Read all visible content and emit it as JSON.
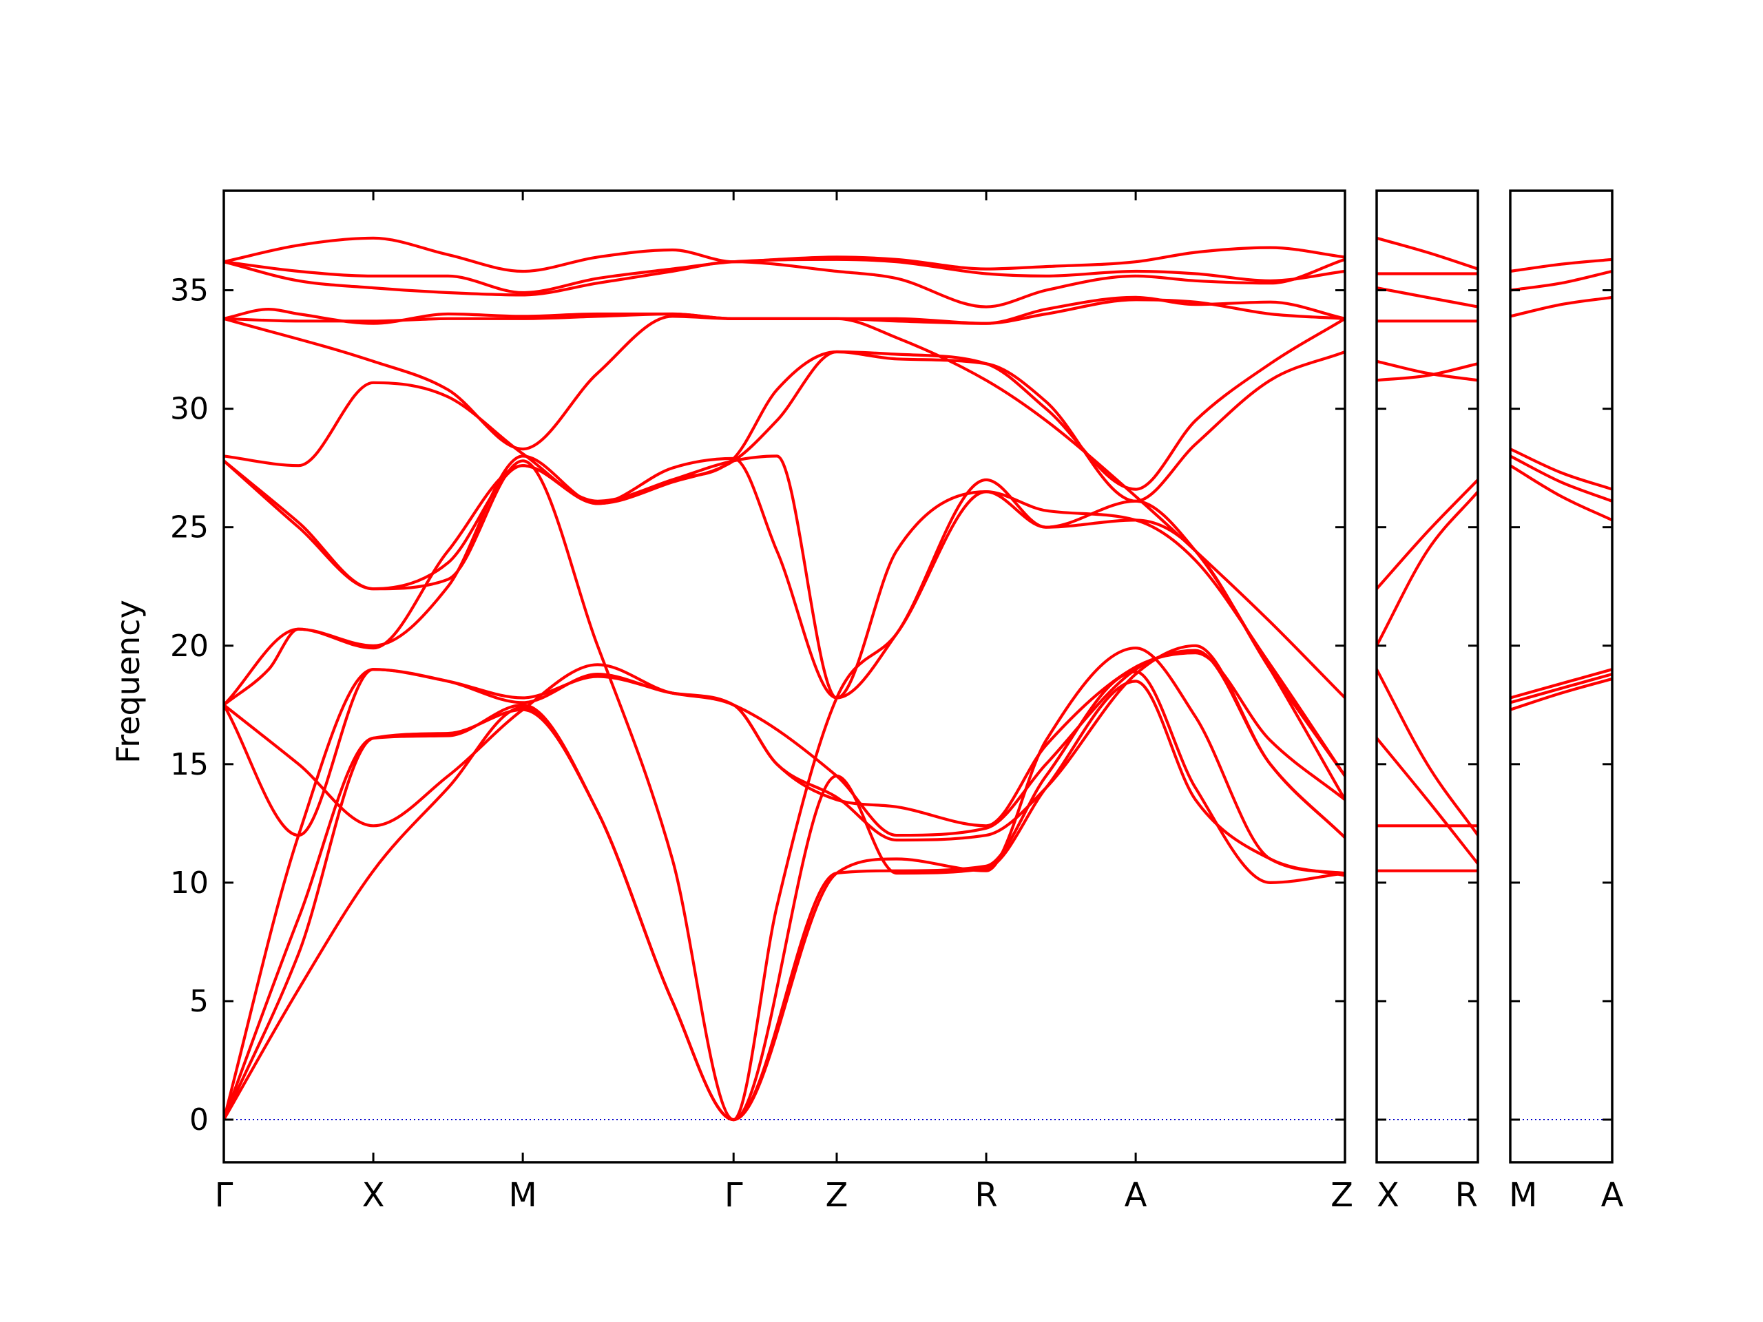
{
  "chart_data": {
    "type": "line",
    "ylabel": "Frequency",
    "ylim": [
      -1.8,
      39.2
    ],
    "yticks": [
      0,
      5,
      10,
      15,
      20,
      25,
      30,
      35
    ],
    "line_color": "#ff0000",
    "zero_line_color": "#0000cc",
    "grid": false,
    "panels": [
      {
        "kpoints": [
          {
            "label": "Γ",
            "x": 0.0
          },
          {
            "label": "X",
            "x": 1.0
          },
          {
            "label": "M",
            "x": 2.0
          },
          {
            "label": "Γ",
            "x": 3.41
          },
          {
            "label": "Z",
            "x": 4.1
          },
          {
            "label": "R",
            "x": 5.1
          },
          {
            "label": "A",
            "x": 6.1
          },
          {
            "label": "Z",
            "x": 7.5
          }
        ],
        "series": [
          {
            "x": [
              0,
              0.5,
              1.0,
              1.5,
              2.0,
              2.5,
              3.0,
              3.41,
              3.7,
              4.1,
              4.5,
              5.1,
              5.5,
              6.1,
              6.5,
              7.0,
              7.5
            ],
            "values": [
              36.2,
              36.9,
              37.2,
              36.5,
              35.8,
              36.4,
              36.7,
              36.2,
              36.3,
              36.4,
              36.3,
              35.9,
              36.0,
              36.2,
              36.6,
              36.8,
              36.4
            ]
          },
          {
            "x": [
              0,
              0.5,
              1.0,
              1.5,
              2.0,
              2.5,
              3.0,
              3.41,
              4.1,
              4.5,
              5.1,
              5.5,
              6.1,
              6.5,
              7.0,
              7.5
            ],
            "values": [
              36.2,
              35.8,
              35.6,
              35.6,
              34.9,
              35.5,
              35.9,
              36.2,
              36.3,
              36.2,
              35.7,
              35.6,
              35.8,
              35.7,
              35.4,
              35.8
            ]
          },
          {
            "x": [
              0,
              0.5,
              1.0,
              1.5,
              2.0,
              2.5,
              3.0,
              3.41,
              4.1,
              4.5,
              5.1,
              5.5,
              6.1,
              6.5,
              7.0,
              7.5
            ],
            "values": [
              36.2,
              35.4,
              35.1,
              34.9,
              34.8,
              35.3,
              35.8,
              36.2,
              35.8,
              35.5,
              34.3,
              35.0,
              35.6,
              35.4,
              35.3,
              36.3
            ]
          },
          {
            "x": [
              0,
              0.3,
              0.5,
              1.0,
              1.5,
              2.0,
              2.5,
              3.0,
              3.41,
              4.1,
              4.5,
              5.1,
              5.5,
              6.1,
              6.5,
              7.0,
              7.5
            ],
            "values": [
              33.8,
              34.2,
              34.0,
              33.6,
              34.0,
              33.9,
              34.0,
              34.0,
              33.8,
              33.8,
              33.8,
              33.6,
              34.2,
              34.7,
              34.4,
              34.5,
              33.8
            ]
          },
          {
            "x": [
              0,
              0.5,
              1.0,
              1.5,
              2.0,
              2.5,
              3.0,
              3.41,
              4.1,
              4.5,
              5.1,
              5.5,
              6.1,
              6.5,
              7.0,
              7.5
            ],
            "values": [
              33.8,
              33.7,
              33.7,
              33.8,
              33.8,
              33.9,
              34.0,
              33.8,
              33.8,
              33.7,
              33.6,
              34.0,
              34.6,
              34.5,
              34.0,
              33.8
            ]
          },
          {
            "x": [
              0,
              0.5,
              1.0,
              1.5,
              2.0,
              2.5,
              3.0,
              3.41,
              3.7,
              4.1,
              4.5,
              5.1,
              5.5,
              6.1,
              6.5,
              7.0,
              7.5
            ],
            "values": [
              28.0,
              27.6,
              31.1,
              30.5,
              28.1,
              26.1,
              27.0,
              27.9,
              30.8,
              32.4,
              32.3,
              31.9,
              30.0,
              26.6,
              29.5,
              31.9,
              33.8
            ]
          },
          {
            "x": [
              0,
              0.5,
              1.0,
              1.5,
              2.0,
              2.5,
              3.0,
              3.41,
              3.7,
              4.1,
              4.5,
              5.1,
              5.5,
              6.1,
              6.5,
              7.0,
              7.5
            ],
            "values": [
              27.8,
              25.2,
              22.4,
              23.5,
              27.6,
              26.0,
              26.9,
              27.8,
              29.5,
              32.4,
              32.1,
              31.9,
              30.3,
              26.1,
              28.5,
              31.2,
              32.4
            ]
          },
          {
            "x": [
              0,
              1.0,
              1.5,
              2.0,
              2.5,
              3.0,
              3.41,
              4.1,
              4.5,
              5.1,
              5.5,
              6.1,
              6.5,
              7.0,
              7.5
            ],
            "values": [
              33.8,
              32.0,
              30.8,
              28.3,
              31.5,
              33.9,
              33.8,
              33.8,
              33.0,
              31.2,
              29.5,
              26.3,
              24.0,
              21.0,
              17.8
            ]
          },
          {
            "x": [
              0,
              0.5,
              1.0,
              1.5,
              2.0,
              2.5,
              3.0,
              3.41,
              3.7,
              4.1,
              4.5,
              5.1,
              5.5,
              6.1,
              6.5,
              7.0,
              7.5
            ],
            "values": [
              27.8,
              25.0,
              22.4,
              22.8,
              27.8,
              20.0,
              11.0,
              0.0,
              9.0,
              17.8,
              20.5,
              26.5,
              25.7,
              25.3,
              23.6,
              19.2,
              14.5
            ]
          },
          {
            "x": [
              0,
              0.5,
              1.0,
              1.5,
              2.0,
              2.5,
              3.0,
              3.41,
              3.7,
              4.1,
              4.5,
              5.1,
              5.5,
              6.1,
              6.5,
              7.0,
              7.5
            ],
            "values": [
              17.5,
              20.7,
              20.0,
              22.5,
              28.0,
              26.0,
              27.5,
              27.9,
              24.0,
              17.8,
              20.5,
              27.0,
              25.0,
              26.1,
              24.0,
              19.0,
              13.5
            ]
          },
          {
            "x": [
              0,
              0.3,
              0.5,
              1.0,
              1.5,
              2.0,
              2.5,
              3.0,
              3.41,
              3.7,
              4.1,
              4.5,
              5.1,
              5.5,
              6.1,
              6.5,
              7.0,
              7.5
            ],
            "values": [
              17.5,
              19.0,
              20.7,
              19.9,
              24.0,
              27.6,
              26.0,
              27.0,
              27.8,
              28.0,
              17.8,
              24.0,
              26.5,
              25.0,
              25.3,
              24.0,
              19.0,
              14.5
            ]
          },
          {
            "x": [
              0,
              0.5,
              1.0,
              1.5,
              2.0,
              2.5,
              3.0,
              3.41,
              3.7,
              4.1,
              4.5,
              5.1,
              5.5,
              6.1,
              6.5,
              7.0,
              7.5
            ],
            "values": [
              17.5,
              15.0,
              12.4,
              14.5,
              17.3,
              19.2,
              18.0,
              17.5,
              15.0,
              13.5,
              13.2,
              12.4,
              15.8,
              19.1,
              19.7,
              16.0,
              13.5
            ]
          },
          {
            "x": [
              0,
              0.5,
              1.0,
              1.5,
              2.0,
              2.5,
              3.0,
              3.41,
              3.7,
              4.1,
              4.5,
              5.1,
              5.5,
              6.1,
              6.5,
              7.0,
              7.5
            ],
            "values": [
              17.5,
              12.0,
              19.0,
              18.5,
              17.6,
              18.8,
              18.0,
              17.5,
              15.0,
              13.6,
              11.8,
              12.0,
              14.0,
              18.8,
              20.0,
              15.0,
              11.9
            ]
          },
          {
            "x": [
              0,
              0.5,
              1.0,
              1.5,
              2.0,
              2.5,
              3.0,
              3.41,
              4.1,
              4.5,
              5.1,
              5.5,
              6.1,
              6.5,
              7.0,
              7.5
            ],
            "values": [
              0.0,
              12.0,
              19.0,
              18.5,
              17.8,
              18.7,
              18.0,
              17.5,
              14.5,
              12.0,
              12.3,
              15.0,
              19.0,
              19.8,
              15.0,
              11.9
            ]
          },
          {
            "x": [
              0,
              0.5,
              1.0,
              1.5,
              2.0,
              2.5,
              3.0,
              3.41,
              4.1,
              4.5,
              5.1,
              5.5,
              6.1,
              6.5,
              7.0,
              7.5
            ],
            "values": [
              0.0,
              8.5,
              16.1,
              16.2,
              17.5,
              13.0,
              5.0,
              0.0,
              10.4,
              11.0,
              10.5,
              16.0,
              19.9,
              17.0,
              11.0,
              10.4
            ]
          },
          {
            "x": [
              0,
              0.5,
              1.0,
              1.5,
              2.0,
              2.5,
              3.0,
              3.41,
              4.1,
              4.5,
              5.1,
              5.5,
              6.1,
              6.5,
              7.0,
              7.5
            ],
            "values": [
              0.0,
              5.5,
              10.5,
              14.0,
              17.4,
              13.0,
              5.0,
              0.0,
              10.4,
              10.5,
              10.7,
              14.5,
              18.9,
              14.0,
              10.0,
              10.4
            ]
          },
          {
            "x": [
              0,
              0.5,
              1.0,
              1.5,
              2.0,
              2.5,
              3.0,
              3.41,
              4.1,
              4.5,
              5.1,
              5.5,
              6.1,
              6.5,
              7.0,
              7.5
            ],
            "values": [
              0.0,
              7.0,
              16.1,
              16.3,
              17.3,
              13.0,
              5.0,
              0.0,
              14.5,
              10.4,
              10.6,
              14.0,
              18.5,
              13.5,
              11.0,
              10.3
            ]
          }
        ]
      },
      {
        "kpoints": [
          {
            "label": "X",
            "x": 0.0
          },
          {
            "label": "R",
            "x": 1.0
          }
        ],
        "series": [
          {
            "x": [
              0,
              0.5,
              1.0
            ],
            "values": [
              37.2,
              36.6,
              35.9
            ]
          },
          {
            "x": [
              0,
              0.5,
              1.0
            ],
            "values": [
              35.7,
              35.7,
              35.7
            ]
          },
          {
            "x": [
              0,
              0.5,
              1.0
            ],
            "values": [
              35.1,
              34.7,
              34.3
            ]
          },
          {
            "x": [
              0,
              0.5,
              1.0
            ],
            "values": [
              33.7,
              33.7,
              33.7
            ]
          },
          {
            "x": [
              0,
              0.5,
              1.0
            ],
            "values": [
              32.0,
              31.5,
              31.2
            ]
          },
          {
            "x": [
              0,
              0.5,
              1.0
            ],
            "values": [
              31.2,
              31.4,
              31.9
            ]
          },
          {
            "x": [
              0,
              0.5,
              1.0
            ],
            "values": [
              22.4,
              24.8,
              27.0
            ]
          },
          {
            "x": [
              0,
              0.5,
              1.0
            ],
            "values": [
              20.0,
              24.0,
              26.5
            ]
          },
          {
            "x": [
              0,
              0.5,
              1.0
            ],
            "values": [
              19.0,
              15.0,
              12.0
            ]
          },
          {
            "x": [
              0,
              0.5,
              1.0
            ],
            "values": [
              16.1,
              13.5,
              10.8
            ]
          },
          {
            "x": [
              0,
              0.5,
              1.0
            ],
            "values": [
              12.4,
              12.4,
              12.4
            ]
          },
          {
            "x": [
              0,
              0.5,
              1.0
            ],
            "values": [
              10.5,
              10.5,
              10.5
            ]
          }
        ]
      },
      {
        "kpoints": [
          {
            "label": "M",
            "x": 0.0
          },
          {
            "label": "A",
            "x": 1.0
          }
        ],
        "series": [
          {
            "x": [
              0,
              0.5,
              1.0
            ],
            "values": [
              35.8,
              36.1,
              36.3
            ]
          },
          {
            "x": [
              0,
              0.5,
              1.0
            ],
            "values": [
              35.0,
              35.3,
              35.8
            ]
          },
          {
            "x": [
              0,
              0.5,
              1.0
            ],
            "values": [
              33.9,
              34.4,
              34.7
            ]
          },
          {
            "x": [
              0,
              0.5,
              1.0
            ],
            "values": [
              28.3,
              27.3,
              26.6
            ]
          },
          {
            "x": [
              0,
              0.5,
              1.0
            ],
            "values": [
              28.0,
              26.9,
              26.1
            ]
          },
          {
            "x": [
              0,
              0.5,
              1.0
            ],
            "values": [
              27.6,
              26.3,
              25.3
            ]
          },
          {
            "x": [
              0,
              0.5,
              1.0
            ],
            "values": [
              17.8,
              18.4,
              19.0
            ]
          },
          {
            "x": [
              0,
              0.5,
              1.0
            ],
            "values": [
              17.6,
              18.2,
              18.8
            ]
          },
          {
            "x": [
              0,
              0.5,
              1.0
            ],
            "values": [
              17.3,
              18.0,
              18.6
            ]
          }
        ]
      }
    ]
  }
}
